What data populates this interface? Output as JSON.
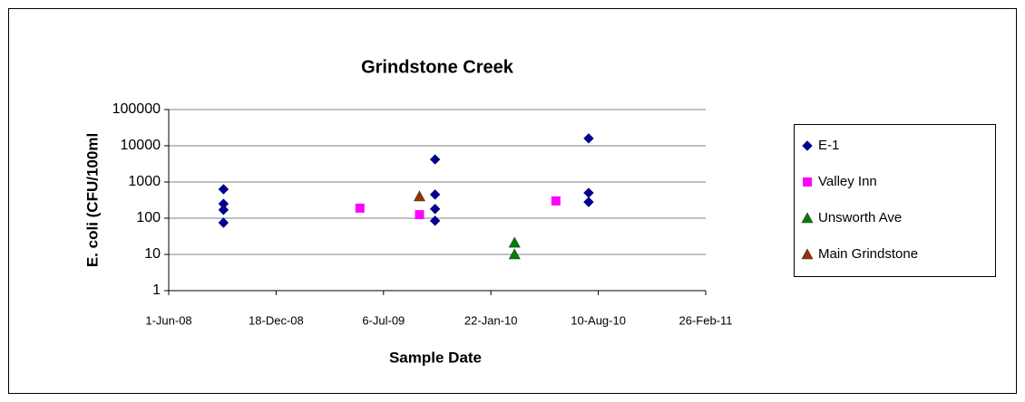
{
  "chart_data": {
    "type": "scatter",
    "title": "Grindstone Creek",
    "xlabel": "Sample Date",
    "ylabel": "E. coli (CFU/100ml",
    "xlim": [
      "2008-06-01",
      "2011-02-26"
    ],
    "xticks": [
      {
        "value": "2008-06-01",
        "label": "1-Jun-08"
      },
      {
        "value": "2008-12-18",
        "label": "18-Dec-08"
      },
      {
        "value": "2009-07-06",
        "label": "6-Jul-09"
      },
      {
        "value": "2010-01-22",
        "label": "22-Jan-10"
      },
      {
        "value": "2010-08-10",
        "label": "10-Aug-10"
      },
      {
        "value": "2011-02-26",
        "label": "26-Feb-11"
      }
    ],
    "ylim": [
      1,
      100000
    ],
    "yticks": [
      1,
      10,
      100,
      1000,
      10000,
      100000
    ],
    "ylog": true,
    "grid": true,
    "legend": "right",
    "series": [
      {
        "name": "E-1",
        "color": "#00008b",
        "marker": "diamond",
        "x": [
          "2008-09-11",
          "2008-09-11",
          "2008-09-11",
          "2008-09-11",
          "2009-10-10",
          "2009-10-10",
          "2009-10-10",
          "2009-10-10",
          "2010-07-23",
          "2010-07-23",
          "2010-07-23"
        ],
        "values": [
          630,
          250,
          170,
          75,
          4200,
          450,
          180,
          85,
          16000,
          500,
          280
        ]
      },
      {
        "name": "Valley Inn",
        "color": "#ff00ff",
        "marker": "square",
        "x": [
          "2009-05-23",
          "2009-09-11",
          "2010-05-23"
        ],
        "values": [
          190,
          125,
          300
        ]
      },
      {
        "name": "Unsworth Ave",
        "color": "#008000",
        "marker": "triangle",
        "x": [
          "2010-03-07",
          "2010-03-07"
        ],
        "values": [
          21,
          10
        ]
      },
      {
        "name": "Main Grindstone",
        "color": "#993300",
        "marker": "triangle",
        "x": [
          "2009-09-11"
        ],
        "values": [
          400
        ]
      }
    ]
  }
}
